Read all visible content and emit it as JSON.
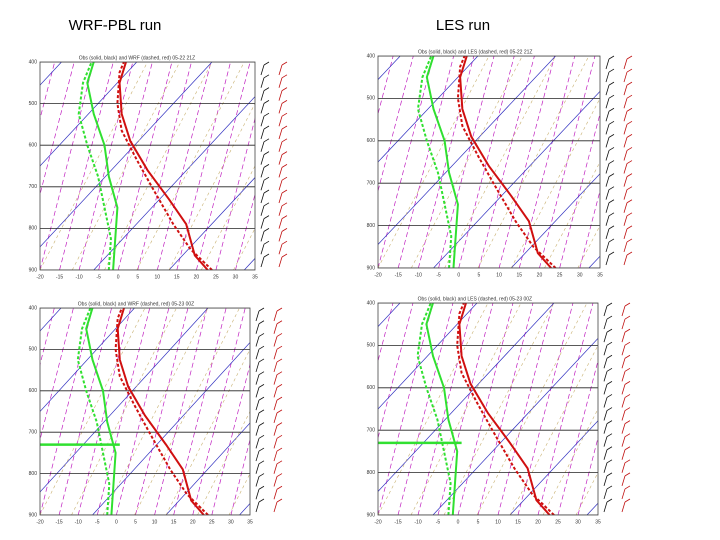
{
  "header": {
    "left": "WRF-PBL run",
    "right": "LES run"
  },
  "panels": [
    {
      "title": "Obs (solid, black) and WRF (dashed, red) 05-22 21Z",
      "pressure_labels": [
        "400",
        "500",
        "600",
        "700",
        "800",
        "900"
      ],
      "temperature_labels": [
        "-20",
        "-15",
        "-10",
        "-5",
        "0",
        "5",
        "10",
        "15",
        "20",
        "25",
        "30",
        "35"
      ]
    },
    {
      "title": "Obs (solid, black) and LES (dashed, red) 05-22 21Z",
      "pressure_labels": [
        "400",
        "500",
        "600",
        "700",
        "800",
        "900"
      ],
      "temperature_labels": [
        "-20",
        "-15",
        "-10",
        "-5",
        "0",
        "5",
        "10",
        "15",
        "20",
        "25",
        "30",
        "35"
      ]
    },
    {
      "title": "Obs (solid, black) and WRF (dashed, red) 05-23 00Z",
      "pressure_labels": [
        "400",
        "500",
        "600",
        "700",
        "800",
        "900"
      ],
      "temperature_labels": [
        "-20",
        "-15",
        "-10",
        "-5",
        "0",
        "5",
        "10",
        "15",
        "20",
        "25",
        "30",
        "35"
      ]
    },
    {
      "title": "Obs (solid, black) and LES (dashed, red) 05-23 00Z",
      "pressure_labels": [
        "400",
        "500",
        "600",
        "700",
        "800",
        "900"
      ],
      "temperature_labels": [
        "-20",
        "-15",
        "-10",
        "-5",
        "0",
        "5",
        "10",
        "15",
        "20",
        "25",
        "30",
        "35"
      ]
    }
  ]
}
